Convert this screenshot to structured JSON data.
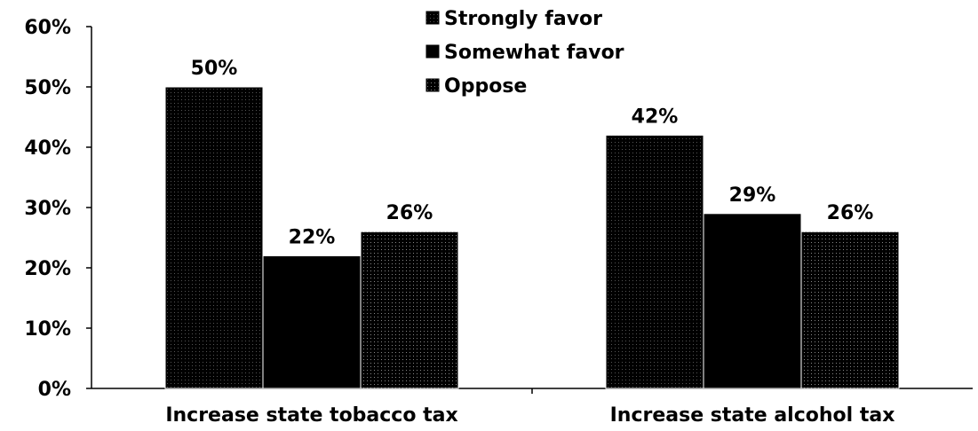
{
  "chart_data": {
    "type": "bar",
    "categories": [
      "Increase state tobacco tax",
      "Increase state alcohol tax"
    ],
    "series": [
      {
        "name": "Strongly favor",
        "values": [
          50,
          42
        ],
        "data_labels": [
          "50%",
          "42%"
        ],
        "pattern": "dense-hatch"
      },
      {
        "name": "Somewhat favor",
        "values": [
          22,
          29
        ],
        "data_labels": [
          "22%",
          "29%"
        ],
        "pattern": "solid"
      },
      {
        "name": "Oppose",
        "values": [
          26,
          26
        ],
        "data_labels": [
          "26%",
          "26%"
        ],
        "pattern": "light-hatch"
      }
    ],
    "y_ticks": [
      "0%",
      "10%",
      "20%",
      "30%",
      "40%",
      "50%",
      "60%"
    ],
    "ylim": [
      0,
      60
    ],
    "legend_position": "top-center",
    "grid": false,
    "colors": {
      "bar": "#000000",
      "axis": "#000000",
      "text": "#000000",
      "background": "#ffffff"
    }
  }
}
